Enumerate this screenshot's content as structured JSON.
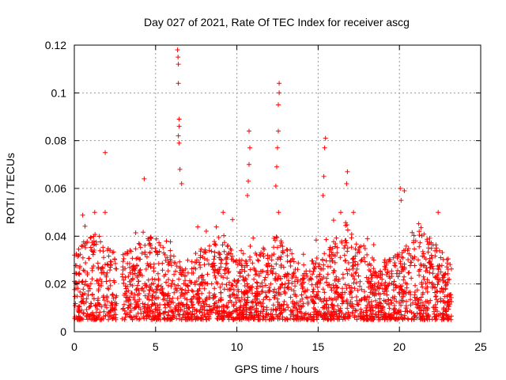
{
  "chart_data": {
    "type": "scatter",
    "title": "Day 027 of 2021, Rate Of TEC Index for receiver ascg",
    "xlabel": "GPS time / hours",
    "ylabel": "ROTI / TECUs",
    "xlim": [
      0,
      25
    ],
    "ylim": [
      0,
      0.12
    ],
    "xticks": [
      0,
      5,
      10,
      15,
      20,
      25
    ],
    "yticks": [
      0,
      0.02,
      0.04,
      0.06,
      0.08,
      0.1,
      0.12
    ],
    "xtick_labels": [
      "0",
      "5",
      "10",
      "15",
      "20",
      "25"
    ],
    "ytick_labels": [
      "0",
      "0.02",
      "0.04",
      "0.06",
      "0.08",
      "0.1",
      "0.12"
    ],
    "grid": true,
    "marker": "+",
    "series": [
      {
        "name": "ROTI",
        "color": "#ff0000",
        "data_gaps_hours": [
          [
            2.6,
            2.95
          ]
        ],
        "time_range_hours": [
          0,
          23.2
        ],
        "baseline_band": [
          0.005,
          0.03
        ],
        "notable_points": [
          {
            "x": 1.9,
            "y": 0.075
          },
          {
            "x": 4.3,
            "y": 0.064
          },
          {
            "x": 6.35,
            "y": 0.118
          },
          {
            "x": 6.38,
            "y": 0.115
          },
          {
            "x": 6.4,
            "y": 0.112
          },
          {
            "x": 6.4,
            "y": 0.104
          },
          {
            "x": 6.45,
            "y": 0.089
          },
          {
            "x": 6.45,
            "y": 0.086
          },
          {
            "x": 6.4,
            "y": 0.082
          },
          {
            "x": 6.45,
            "y": 0.079
          },
          {
            "x": 6.5,
            "y": 0.068
          },
          {
            "x": 6.6,
            "y": 0.062
          },
          {
            "x": 10.75,
            "y": 0.084
          },
          {
            "x": 10.8,
            "y": 0.077
          },
          {
            "x": 10.75,
            "y": 0.07
          },
          {
            "x": 10.7,
            "y": 0.063
          },
          {
            "x": 10.65,
            "y": 0.057
          },
          {
            "x": 12.6,
            "y": 0.104
          },
          {
            "x": 12.6,
            "y": 0.1
          },
          {
            "x": 12.55,
            "y": 0.095
          },
          {
            "x": 12.55,
            "y": 0.084
          },
          {
            "x": 12.5,
            "y": 0.077
          },
          {
            "x": 12.45,
            "y": 0.069
          },
          {
            "x": 12.4,
            "y": 0.061
          },
          {
            "x": 15.45,
            "y": 0.081
          },
          {
            "x": 15.4,
            "y": 0.077
          },
          {
            "x": 15.35,
            "y": 0.065
          },
          {
            "x": 15.3,
            "y": 0.057
          },
          {
            "x": 16.8,
            "y": 0.067
          },
          {
            "x": 16.75,
            "y": 0.062
          },
          {
            "x": 20.05,
            "y": 0.06
          },
          {
            "x": 20.3,
            "y": 0.059
          },
          {
            "x": 20.1,
            "y": 0.055
          }
        ]
      }
    ]
  }
}
